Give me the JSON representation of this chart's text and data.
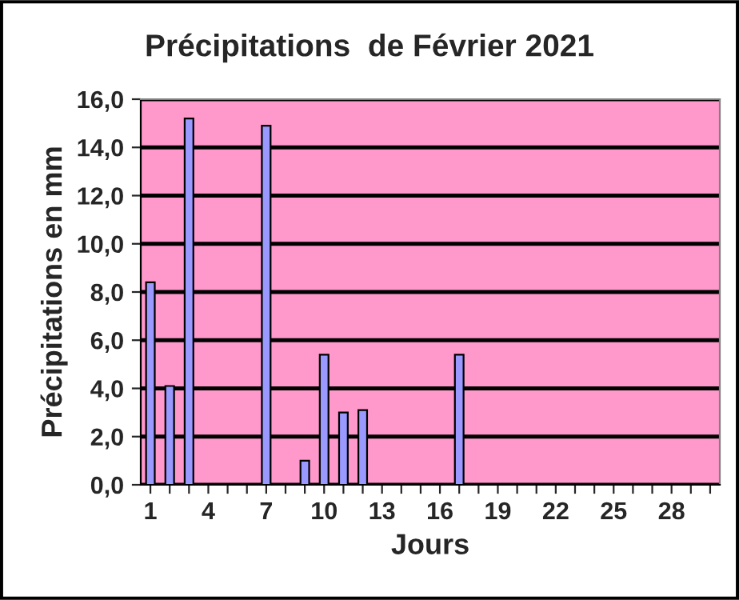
{
  "chart_data": {
    "type": "bar",
    "title": "Précipitations  de Février 2021",
    "xlabel": "Jours",
    "ylabel": "Précipitations en mm",
    "categories": [
      "1",
      null,
      null,
      "4",
      null,
      null,
      "7",
      null,
      null,
      "10",
      null,
      null,
      "13",
      null,
      null,
      "16",
      null,
      null,
      "19",
      null,
      null,
      "22",
      null,
      null,
      "25",
      null,
      null,
      "28",
      null,
      null
    ],
    "values": [
      8.4,
      4.1,
      15.2,
      null,
      null,
      null,
      14.9,
      null,
      1.0,
      5.4,
      3.0,
      3.1,
      null,
      null,
      null,
      null,
      5.4,
      null,
      null,
      null,
      null,
      null,
      null,
      null,
      null,
      null,
      null,
      null,
      null,
      null
    ],
    "color": "#9999ff",
    "ylim": [
      0,
      16
    ],
    "yticks": [
      {
        "value": 0,
        "label": "0,0"
      },
      {
        "value": 2,
        "label": "2,0"
      },
      {
        "value": 4,
        "label": "4,0"
      },
      {
        "value": 6,
        "label": "6,0"
      },
      {
        "value": 8,
        "label": "8,0"
      },
      {
        "value": 10,
        "label": "10,0"
      },
      {
        "value": 12,
        "label": "12,0"
      },
      {
        "value": 14,
        "label": "14,0"
      },
      {
        "value": 16,
        "label": "16,0"
      }
    ],
    "grid": "y"
  }
}
